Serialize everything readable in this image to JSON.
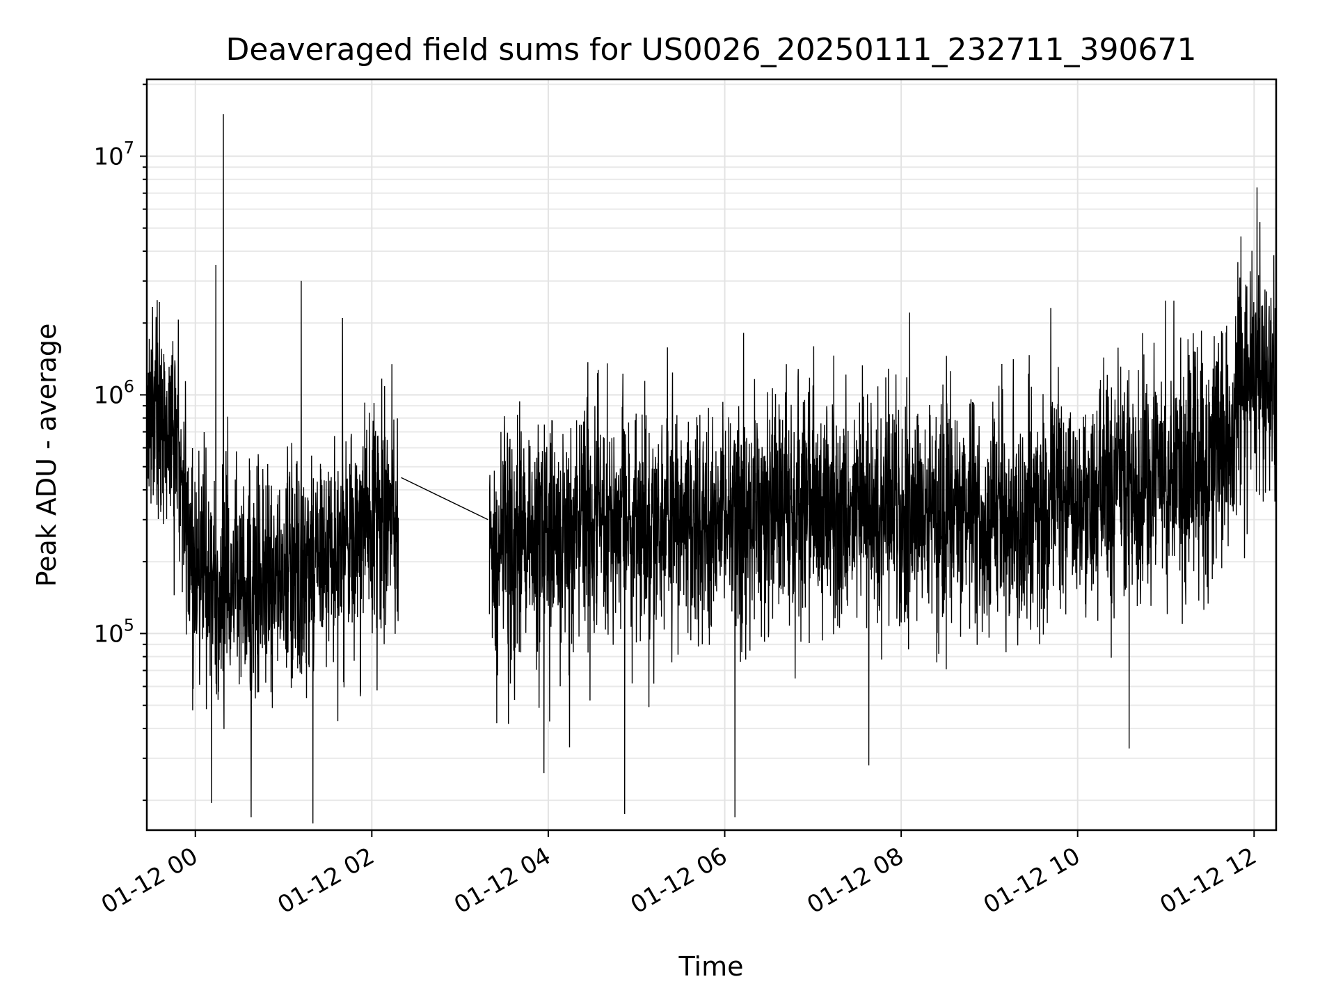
{
  "chart_data": {
    "type": "line",
    "title": "Deaveraged field sums for US0026_20250111_232711_390671",
    "xlabel": "Time",
    "ylabel": "Peak ADU - average",
    "yscale": "log",
    "x_range": [
      "2025-01-11T23:27",
      "2025-01-12T12:15"
    ],
    "ylim": [
      15000,
      21000000
    ],
    "grid": true,
    "x_ticks": [
      "01-12 00",
      "01-12 02",
      "01-12 04",
      "01-12 06",
      "01-12 08",
      "01-12 10",
      "01-12 12"
    ],
    "y_ticks": [
      {
        "base": "10",
        "exp": "5",
        "value": 100000
      },
      {
        "base": "10",
        "exp": "6",
        "value": 1000000
      },
      {
        "base": "10",
        "exp": "7",
        "value": 10000000
      }
    ],
    "series_color": "#000000",
    "segments": [
      {
        "x_start": "2025-01-11T23:27",
        "x_end": "2025-01-12T02:18",
        "level_profile": [
          [
            "2025-01-11T23:27",
            900000
          ],
          [
            "2025-01-11T23:45",
            800000
          ],
          [
            "2025-01-11T23:53",
            400000
          ],
          [
            "2025-01-12T00:00",
            180000
          ],
          [
            "2025-01-12T00:30",
            150000
          ],
          [
            "2025-01-12T01:00",
            170000
          ],
          [
            "2025-01-12T01:30",
            220000
          ],
          [
            "2025-01-12T02:00",
            280000
          ],
          [
            "2025-01-12T02:18",
            300000
          ]
        ]
      },
      {
        "x_start": "2025-01-12T03:20",
        "x_end": "2025-01-12T12:15",
        "level_profile": [
          [
            "2025-01-12T03:20",
            230000
          ],
          [
            "2025-01-12T04:00",
            260000
          ],
          [
            "2025-01-12T05:00",
            280000
          ],
          [
            "2025-01-12T06:00",
            320000
          ],
          [
            "2025-01-12T07:00",
            350000
          ],
          [
            "2025-01-12T08:00",
            340000
          ],
          [
            "2025-01-12T09:00",
            290000
          ],
          [
            "2025-01-12T10:00",
            330000
          ],
          [
            "2025-01-12T11:00",
            450000
          ],
          [
            "2025-01-12T11:45",
            600000
          ],
          [
            "2025-01-12T11:50",
            1200000
          ],
          [
            "2025-01-12T12:15",
            1150000
          ]
        ]
      }
    ],
    "gap_line": [
      [
        "2025-01-12T02:20",
        450000
      ],
      [
        "2025-01-12T03:19",
        300000
      ]
    ],
    "notable_points": [
      [
        "2025-01-12T00:19",
        15000000
      ],
      [
        "2025-01-12T00:14",
        3500000
      ],
      [
        "2025-01-12T01:12",
        3000000
      ],
      [
        "2025-01-12T01:40",
        2100000
      ],
      [
        "2025-01-12T06:07",
        1800000
      ],
      [
        "2025-01-12T12:02",
        7400000
      ],
      [
        "2025-01-12T12:04",
        5300000
      ],
      [
        "2025-01-12T11:49",
        3600000
      ],
      [
        "2025-01-12T01:20",
        16000
      ],
      [
        "2025-01-12T06:07",
        17000
      ],
      [
        "2025-01-12T04:52",
        17500
      ],
      [
        "2025-01-12T00:38",
        17000
      ],
      [
        "2025-01-12T00:11",
        19500
      ],
      [
        "2025-01-12T07:38",
        28000
      ],
      [
        "2025-01-12T10:35",
        33000
      ],
      [
        "2025-01-12T03:57",
        26000
      ]
    ]
  }
}
